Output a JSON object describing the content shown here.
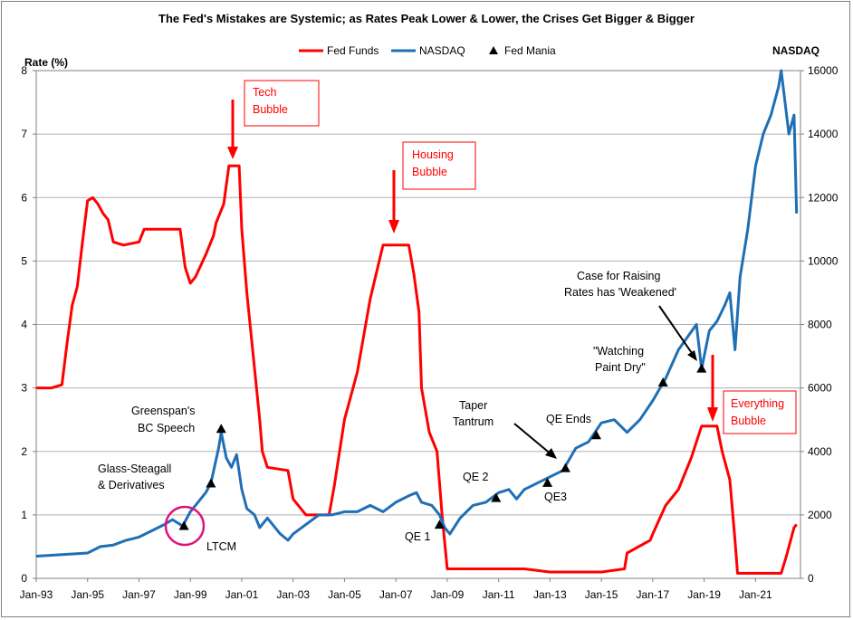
{
  "chart_data": {
    "type": "line",
    "title": "The Fed's Mistakes are Systemic; as Rates Peak Lower & Lower, the Crises Get Bigger & Bigger",
    "ylabel_left": "Rate (%)",
    "ylabel_right": "NASDAQ",
    "ylim_left": [
      0,
      8
    ],
    "ylim_right": [
      0,
      16000
    ],
    "yticks_left": [
      "0",
      "1",
      "2",
      "3",
      "4",
      "5",
      "6",
      "7",
      "8"
    ],
    "yticks_right": [
      "0",
      "2000",
      "4000",
      "6000",
      "8000",
      "10000",
      "12000",
      "14000",
      "16000"
    ],
    "xticks": [
      "Jan-93",
      "Jan-95",
      "Jan-97",
      "Jan-99",
      "Jan-01",
      "Jan-03",
      "Jan-05",
      "Jan-07",
      "Jan-09",
      "Jan-11",
      "Jan-13",
      "Jan-15",
      "Jan-17",
      "Jan-19",
      "Jan-21"
    ],
    "xlim": [
      1993.0,
      2022.75
    ],
    "legend": {
      "position": "top-center",
      "items": [
        {
          "label": "Fed Funds",
          "color": "#ff0000",
          "marker": "line"
        },
        {
          "label": "NASDAQ",
          "color": "#1f6fb5",
          "marker": "line"
        },
        {
          "label": "Fed Mania",
          "color": "#000000",
          "marker": "triangle"
        }
      ]
    },
    "series": [
      {
        "name": "Fed Funds",
        "axis": "left",
        "color": "#ff0000",
        "x": [
          1993.0,
          1993.6,
          1994.0,
          1994.2,
          1994.4,
          1994.6,
          1994.8,
          1995.0,
          1995.2,
          1995.4,
          1995.6,
          1995.8,
          1996.0,
          1996.4,
          1997.0,
          1997.2,
          1997.6,
          1998.0,
          1998.6,
          1998.8,
          1999.0,
          1999.2,
          1999.6,
          1999.9,
          2000.0,
          2000.3,
          2000.5,
          2000.9,
          2001.0,
          2001.2,
          2001.4,
          2001.7,
          2001.8,
          2002.0,
          2002.8,
          2003.0,
          2003.5,
          2003.9,
          2004.4,
          2004.6,
          2005.0,
          2005.5,
          2006.0,
          2006.5,
          2007.5,
          2007.7,
          2007.9,
          2008.0,
          2008.3,
          2008.6,
          2008.8,
          2009.0,
          2010.0,
          2011.0,
          2012.0,
          2013.0,
          2014.0,
          2015.0,
          2015.9,
          2016.0,
          2016.9,
          2017.0,
          2017.5,
          2018.0,
          2018.5,
          2018.9,
          2019.0,
          2019.5,
          2019.7,
          2020.0,
          2020.2,
          2020.3,
          2021.0,
          2022.0,
          2022.2,
          2022.5,
          2022.6
        ],
        "values": [
          3.0,
          3.0,
          3.05,
          3.7,
          4.3,
          4.6,
          5.3,
          5.95,
          6.0,
          5.9,
          5.75,
          5.65,
          5.3,
          5.25,
          5.3,
          5.5,
          5.5,
          5.5,
          5.5,
          4.9,
          4.65,
          4.75,
          5.1,
          5.4,
          5.6,
          5.9,
          6.5,
          6.5,
          5.5,
          4.5,
          3.7,
          2.5,
          2.0,
          1.75,
          1.7,
          1.25,
          1.0,
          1.0,
          1.0,
          1.45,
          2.5,
          3.25,
          4.4,
          5.25,
          5.25,
          4.8,
          4.2,
          3.0,
          2.3,
          2.0,
          1.0,
          0.15,
          0.15,
          0.15,
          0.15,
          0.1,
          0.1,
          0.1,
          0.15,
          0.4,
          0.6,
          0.7,
          1.15,
          1.4,
          1.9,
          2.4,
          2.4,
          2.4,
          2.0,
          1.55,
          0.6,
          0.08,
          0.08,
          0.08,
          0.35,
          0.8,
          0.85
        ]
      },
      {
        "name": "NASDAQ",
        "axis": "right",
        "color": "#1f6fb5",
        "x": [
          1993.0,
          1994.0,
          1995.0,
          1995.5,
          1996.0,
          1996.5,
          1997.0,
          1997.5,
          1998.0,
          1998.3,
          1998.7,
          1999.0,
          1999.3,
          1999.6,
          1999.8,
          2000.1,
          2000.2,
          2000.4,
          2000.6,
          2000.8,
          2001.0,
          2001.2,
          2001.5,
          2001.7,
          2002.0,
          2002.5,
          2002.8,
          2003.0,
          2003.5,
          2004.0,
          2004.5,
          2005.0,
          2005.5,
          2006.0,
          2006.5,
          2007.0,
          2007.5,
          2007.8,
          2008.0,
          2008.4,
          2008.7,
          2008.9,
          2009.1,
          2009.5,
          2010.0,
          2010.5,
          2011.0,
          2011.4,
          2011.7,
          2012.0,
          2012.5,
          2013.0,
          2013.5,
          2014.0,
          2014.5,
          2015.0,
          2015.5,
          2016.0,
          2016.5,
          2017.0,
          2017.5,
          2018.0,
          2018.7,
          2018.9,
          2019.2,
          2019.5,
          2019.8,
          2020.0,
          2020.2,
          2020.4,
          2020.7,
          2021.0,
          2021.3,
          2021.6,
          2021.9,
          2022.0,
          2022.3,
          2022.5,
          2022.6
        ],
        "values": [
          700,
          750,
          800,
          1000,
          1050,
          1200,
          1300,
          1500,
          1700,
          1850,
          1650,
          2100,
          2400,
          2700,
          3000,
          4100,
          4600,
          3800,
          3500,
          3900,
          2800,
          2200,
          2000,
          1600,
          1900,
          1400,
          1200,
          1400,
          1700,
          2000,
          2000,
          2100,
          2100,
          2300,
          2100,
          2400,
          2600,
          2700,
          2400,
          2300,
          2000,
          1600,
          1400,
          1900,
          2300,
          2400,
          2700,
          2800,
          2500,
          2800,
          3000,
          3200,
          3400,
          4100,
          4300,
          4900,
          5000,
          4600,
          5000,
          5600,
          6300,
          7200,
          8000,
          6600,
          7800,
          8100,
          8600,
          9000,
          7200,
          9500,
          11000,
          13000,
          14000,
          14600,
          15500,
          16000,
          14000,
          14600,
          11500
        ]
      }
    ],
    "markers": [
      {
        "label": "Fed Mania",
        "x": 1998.75,
        "y": 0.82
      },
      {
        "label": "Fed Mania",
        "x": 1999.8,
        "y": 1.49
      },
      {
        "label": "Fed Mania",
        "x": 2000.2,
        "y": 2.35
      },
      {
        "label": "Fed Mania",
        "x": 2008.7,
        "y": 0.84
      },
      {
        "label": "Fed Mania",
        "x": 2010.9,
        "y": 1.26
      },
      {
        "label": "Fed Mania",
        "x": 2012.9,
        "y": 1.5
      },
      {
        "label": "Fed Mania",
        "x": 2013.6,
        "y": 1.73
      },
      {
        "label": "Fed Mania",
        "x": 2014.8,
        "y": 2.25
      },
      {
        "label": "Fed Mania",
        "x": 2017.4,
        "y": 3.08
      },
      {
        "label": "Fed Mania",
        "x": 2018.9,
        "y": 3.3
      }
    ],
    "annotations": {
      "ltcm": "LTCM",
      "glass_line1": "Glass-Steagall",
      "glass_line2": "& Derivatives",
      "greenspan_line1": "Greenspan's",
      "greenspan_line2": "BC Speech",
      "qe1": "QE 1",
      "qe2": "QE 2",
      "qe3": "QE3",
      "qe_ends": "QE Ends",
      "taper_line1": "Taper",
      "taper_line2": "Tantrum",
      "watching_line1": "\"Watching",
      "watching_line2": "Paint  Dry\"",
      "case_line1": "Case  for Raising",
      "case_line2": "Rates has 'Weakened'",
      "tech_line1": "Tech",
      "tech_line2": "Bubble",
      "housing_line1": "Housing",
      "housing_line2": "Bubble",
      "everything_line1": "Everything",
      "everything_line2": "Bubble"
    }
  }
}
